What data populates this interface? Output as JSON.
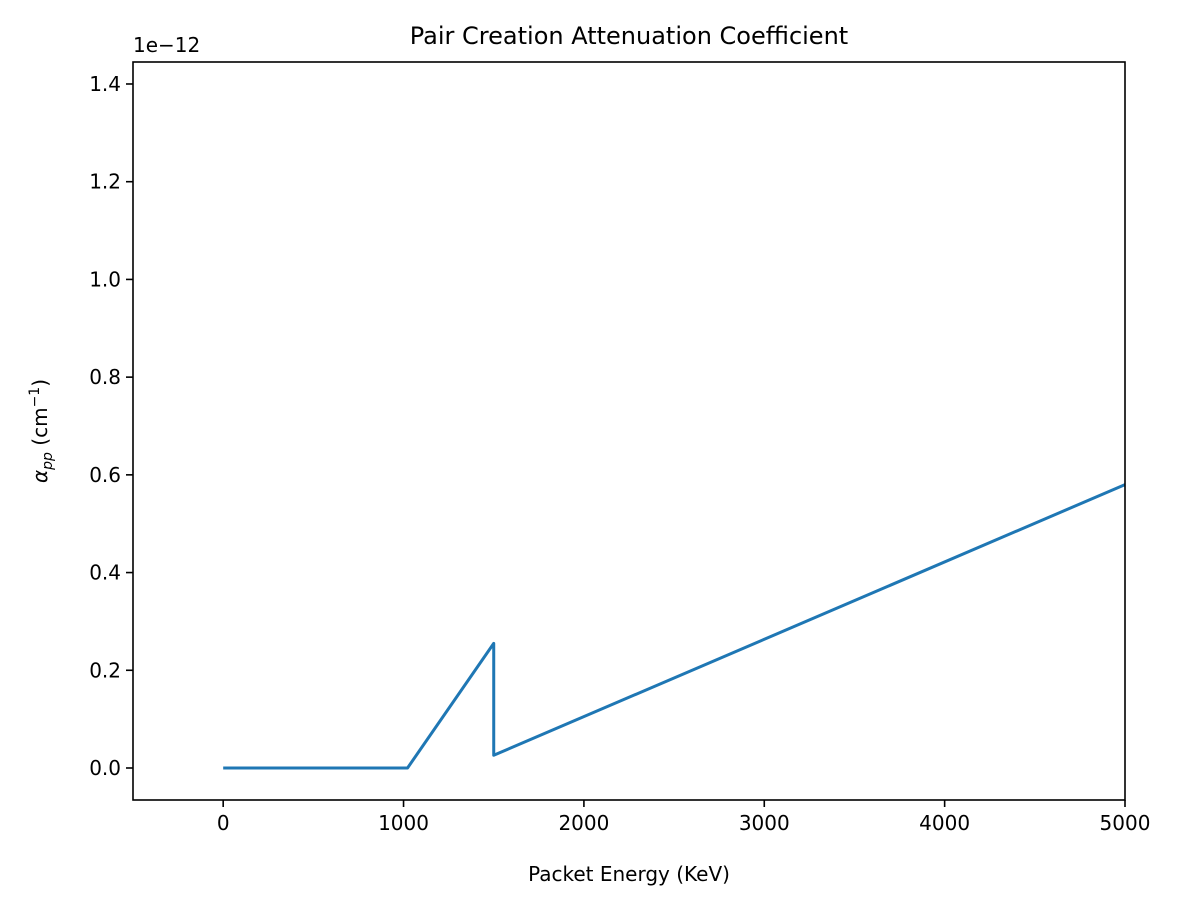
{
  "chart_data": {
    "type": "line",
    "title": "Pair Creation Attenuation Coefficient",
    "xlabel": "Packet Energy (KeV)",
    "ylabel": [
      "α",
      "pp",
      " (cm",
      "−1",
      ")"
    ],
    "y_offset_text": "1e−12",
    "x": [
      0,
      1022,
      1500,
      1500,
      5000
    ],
    "series": [
      {
        "color": "#1f77b4",
        "values": [
          0,
          0,
          0.255,
          0.026,
          0.58
        ]
      }
    ],
    "xlim": [
      -500,
      5000
    ],
    "xticks": [
      0,
      1000,
      2000,
      3000,
      4000,
      5000
    ],
    "ylim": [
      -0.0655,
      1.445
    ],
    "yticks": [
      {
        "value": 0,
        "label": "0.0"
      },
      0.2,
      0.4,
      0.6,
      0.8,
      {
        "value": 1,
        "label": "1.0"
      },
      1.2,
      1.4
    ],
    "grid": false
  }
}
